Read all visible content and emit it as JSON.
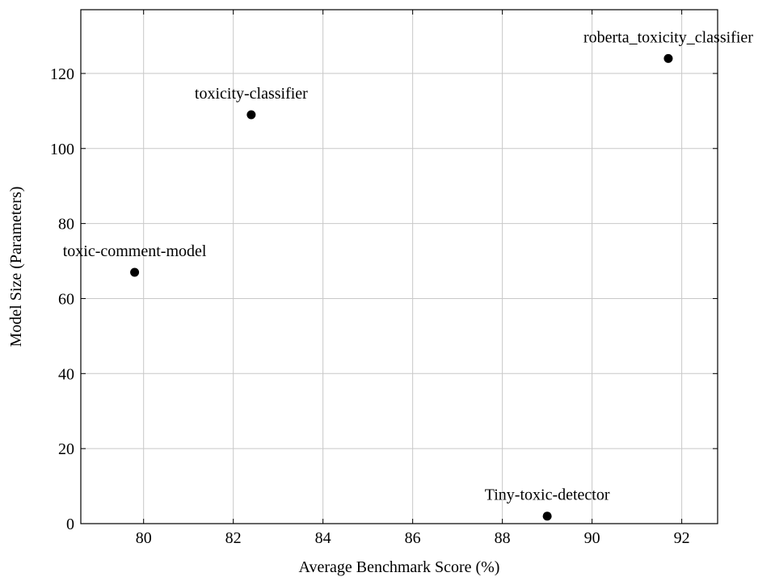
{
  "chart_data": {
    "type": "scatter",
    "title": "",
    "xlabel": "Average Benchmark Score (%)",
    "ylabel": "Model Size (Parameters)",
    "xlim": [
      78.6,
      92.8
    ],
    "ylim": [
      0,
      137
    ],
    "xticks": [
      80,
      82,
      84,
      86,
      88,
      90,
      92
    ],
    "yticks": [
      0,
      20,
      40,
      60,
      80,
      100,
      120
    ],
    "grid": true,
    "points": [
      {
        "label": "roberta_toxicity_classifier",
        "x": 91.7,
        "y": 124
      },
      {
        "label": "toxicity-classifier",
        "x": 82.4,
        "y": 109
      },
      {
        "label": "toxic-comment-model",
        "x": 79.8,
        "y": 67
      },
      {
        "label": "Tiny-toxic-detector",
        "x": 89.0,
        "y": 2
      }
    ],
    "colors": {
      "marker": "#000000",
      "grid": "#c8c8c8",
      "axis": "#000000"
    }
  }
}
